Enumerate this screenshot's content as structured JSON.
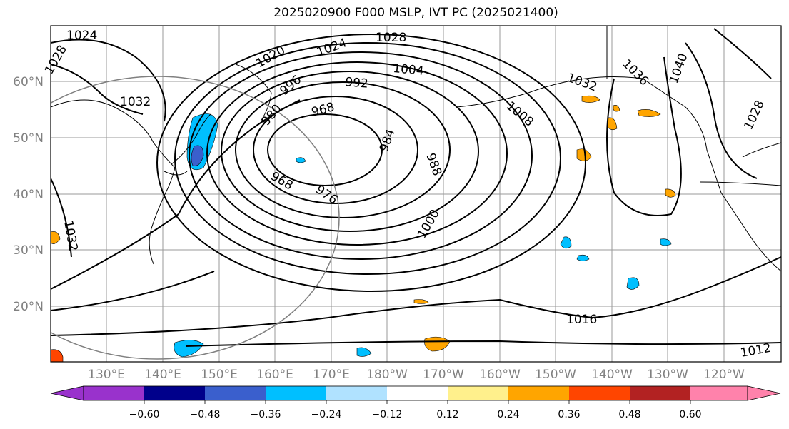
{
  "title": "2025020900 F000 MSLP, IVT PC (2025021400)",
  "map": {
    "lat_labels": [
      "60°N",
      "50°N",
      "40°N",
      "30°N",
      "20°N"
    ],
    "lon_labels": [
      "130°E",
      "140°E",
      "150°E",
      "160°E",
      "170°E",
      "180°W",
      "170°W",
      "160°W",
      "150°W",
      "140°W",
      "130°W",
      "120°W"
    ],
    "contour_labels": [
      {
        "text": "1024",
        "rot": 0
      },
      {
        "text": "1028",
        "rot": -60
      },
      {
        "text": "1020",
        "rot": -30
      },
      {
        "text": "1024",
        "rot": -20
      },
      {
        "text": "1028",
        "rot": 0
      },
      {
        "text": "1004",
        "rot": 5
      },
      {
        "text": "992",
        "rot": 5
      },
      {
        "text": "996",
        "rot": -40
      },
      {
        "text": "980",
        "rot": -50
      },
      {
        "text": "968",
        "rot": -15
      },
      {
        "text": "984",
        "rot": -70
      },
      {
        "text": "988",
        "rot": 70
      },
      {
        "text": "968",
        "rot": 30
      },
      {
        "text": "976",
        "rot": 35
      },
      {
        "text": "1000",
        "rot": -60
      },
      {
        "text": "1008",
        "rot": 40
      },
      {
        "text": "1032",
        "rot": 20
      },
      {
        "text": "1036",
        "rot": 45
      },
      {
        "text": "1040",
        "rot": -70
      },
      {
        "text": "1028",
        "rot": -65
      },
      {
        "text": "1032",
        "rot": 80
      },
      {
        "text": "1032",
        "rot": 0
      },
      {
        "text": "1016",
        "rot": 0
      },
      {
        "text": "1012",
        "rot": -10
      }
    ]
  },
  "colorbar": {
    "ticks": [
      "−0.60",
      "−0.48",
      "−0.36",
      "−0.24",
      "−0.12",
      "0.12",
      "0.24",
      "0.36",
      "0.48",
      "0.60"
    ],
    "colors": [
      "#9932cc",
      "#00008b",
      "#3a5fcd",
      "#00bfff",
      "#b0e2ff",
      "#ffffff",
      "#fff08c",
      "#ffa500",
      "#ff4500",
      "#b22222",
      "#ff82ab"
    ],
    "extend_left_color": "#9932cc",
    "extend_right_color": "#ff82ab"
  }
}
